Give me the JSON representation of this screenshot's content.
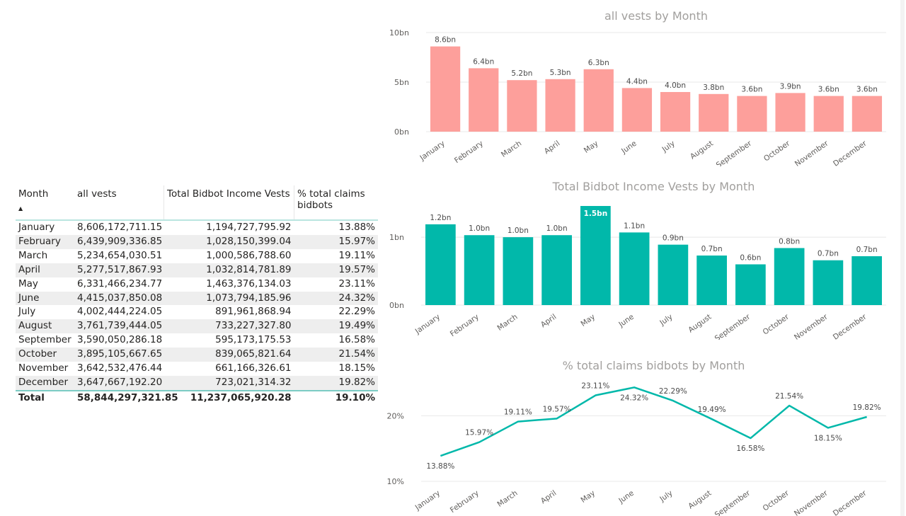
{
  "table": {
    "headers": [
      "Month",
      "all vests",
      "Total Bidbot Income Vests",
      "% total claims bidbots"
    ],
    "sort_indicator": "▲",
    "rows": [
      [
        "January",
        "8,606,172,711.15",
        "1,194,727,795.92",
        "13.88%"
      ],
      [
        "February",
        "6,439,909,336.85",
        "1,028,150,399.04",
        "15.97%"
      ],
      [
        "March",
        "5,234,654,030.51",
        "1,000,586,788.60",
        "19.11%"
      ],
      [
        "April",
        "5,277,517,867.93",
        "1,032,814,781.89",
        "19.57%"
      ],
      [
        "May",
        "6,331,466,234.77",
        "1,463,376,134.03",
        "23.11%"
      ],
      [
        "June",
        "4,415,037,850.08",
        "1,073,794,185.96",
        "24.32%"
      ],
      [
        "July",
        "4,002,444,224.05",
        "891,961,868.94",
        "22.29%"
      ],
      [
        "August",
        "3,761,739,444.05",
        "733,227,327.80",
        "19.49%"
      ],
      [
        "September",
        "3,590,050,286.18",
        "595,173,175.53",
        "16.58%"
      ],
      [
        "October",
        "3,895,105,667.65",
        "839,065,821.64",
        "21.54%"
      ],
      [
        "November",
        "3,642,532,476.44",
        "661,166,326.61",
        "18.15%"
      ],
      [
        "December",
        "3,647,667,192.20",
        "723,021,314.32",
        "19.82%"
      ]
    ],
    "total": [
      "Total",
      "58,844,297,321.85",
      "11,237,065,920.28",
      "19.10%"
    ]
  },
  "chart_data": [
    {
      "type": "bar",
      "title": "all vests by Month",
      "color": "#fd9f9b",
      "categories": [
        "January",
        "February",
        "March",
        "April",
        "May",
        "June",
        "July",
        "August",
        "September",
        "October",
        "November",
        "December"
      ],
      "values": [
        8.6,
        6.4,
        5.2,
        5.3,
        6.3,
        4.4,
        4.0,
        3.8,
        3.6,
        3.9,
        3.6,
        3.6
      ],
      "data_labels": [
        "8.6bn",
        "6.4bn",
        "5.2bn",
        "5.3bn",
        "6.3bn",
        "4.4bn",
        "4.0bn",
        "3.8bn",
        "3.6bn",
        "3.9bn",
        "3.6bn",
        "3.6bn"
      ],
      "yticks": [
        0,
        5,
        10
      ],
      "ytick_labels": [
        "0bn",
        "5bn",
        "10bn"
      ],
      "ylim": [
        0,
        10
      ]
    },
    {
      "type": "bar",
      "title": "Total Bidbot Income Vests by Month",
      "color": "#01b8aa",
      "categories": [
        "January",
        "February",
        "March",
        "April",
        "May",
        "June",
        "July",
        "August",
        "September",
        "October",
        "November",
        "December"
      ],
      "values": [
        1.19,
        1.03,
        1.0,
        1.03,
        1.46,
        1.07,
        0.89,
        0.73,
        0.6,
        0.84,
        0.66,
        0.72
      ],
      "data_labels": [
        "1.2bn",
        "1.0bn",
        "1.0bn",
        "1.0bn",
        "1.5bn",
        "1.1bn",
        "0.9bn",
        "0.7bn",
        "0.6bn",
        "0.8bn",
        "0.7bn",
        "0.7bn"
      ],
      "inside_label_index": 4,
      "yticks": [
        0,
        1
      ],
      "ytick_labels": [
        "0bn",
        "1bn"
      ],
      "ylim": [
        0,
        1.46
      ]
    },
    {
      "type": "line",
      "title": "% total claims bidbots by Month",
      "color": "#01b8aa",
      "categories": [
        "January",
        "February",
        "March",
        "April",
        "May",
        "June",
        "July",
        "August",
        "September",
        "October",
        "November",
        "December"
      ],
      "values": [
        13.88,
        15.97,
        19.11,
        19.57,
        23.11,
        24.32,
        22.29,
        19.49,
        16.58,
        21.54,
        18.15,
        19.82
      ],
      "data_labels": [
        "13.88%",
        "15.97%",
        "19.11%",
        "19.57%",
        "23.11%",
        "24.32%",
        "22.29%",
        "19.49%",
        "16.58%",
        "21.54%",
        "18.15%",
        "19.82%"
      ],
      "label_below": [
        true,
        false,
        false,
        false,
        false,
        true,
        false,
        false,
        true,
        false,
        true,
        false
      ],
      "yticks": [
        10,
        20
      ],
      "ytick_labels": [
        "10%",
        "20%"
      ],
      "ylim": [
        10,
        25
      ]
    }
  ]
}
